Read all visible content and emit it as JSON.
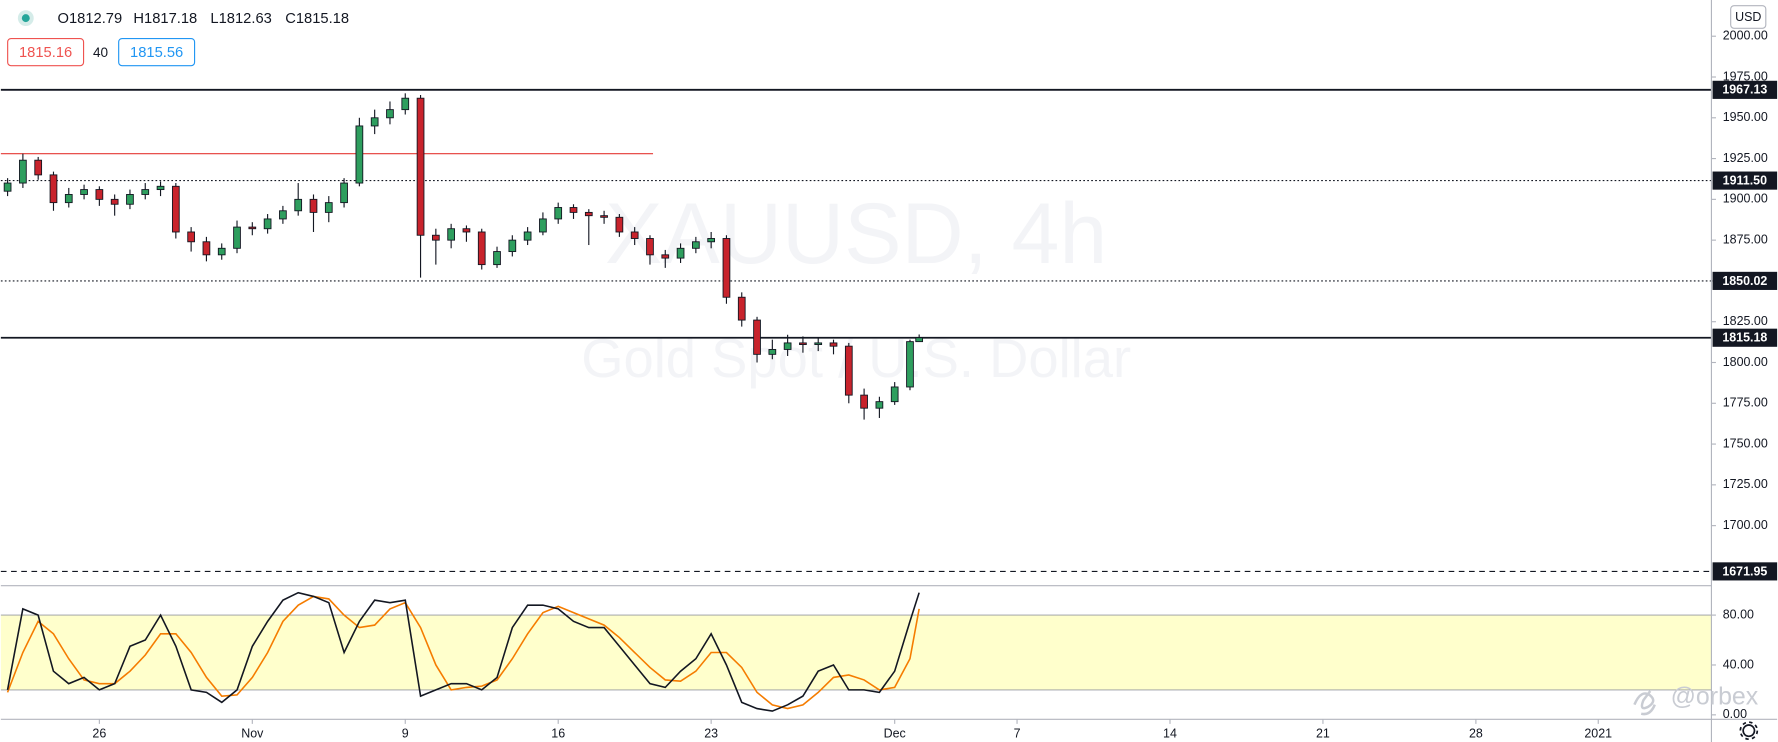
{
  "header": {
    "ohlc": [
      "O1812.79",
      "H1817.18",
      "L1812.63",
      "C1815.18"
    ],
    "bid": "1815.16",
    "spread": "40",
    "ask": "1815.56",
    "currency": "USD"
  },
  "watermark": {
    "symbol": "XAUUSD, 4h",
    "description": "Gold Spot / U.S. Dollar"
  },
  "credit": "@orbex",
  "chart_data": [
    {
      "type": "candlestick",
      "up_color": "#2e9e5e",
      "down_color": "#c8232c",
      "x": [
        -3,
        -2.5,
        -2,
        -1.5,
        -1,
        -0.5,
        0,
        0.5,
        1,
        1.5,
        2,
        2.5,
        3,
        3.5,
        4,
        4.5,
        5,
        5.5,
        6,
        6.5,
        7,
        7.5,
        8,
        8.5,
        9,
        9.5,
        10,
        10.5,
        11,
        11.5,
        12,
        12.5,
        13,
        13.5,
        14,
        14.5,
        15,
        15.5,
        16,
        16.5,
        17,
        17.5,
        18,
        18.5,
        19,
        19.5,
        20,
        20.5,
        21,
        21.5,
        22,
        22.5,
        23,
        23.5,
        24,
        24.5,
        25,
        25.5,
        26,
        26.5,
        26.8
      ],
      "open": [
        1905,
        1910,
        1924,
        1915,
        1898,
        1903,
        1906,
        1900,
        1897,
        1903,
        1906,
        1908,
        1880,
        1874,
        1866,
        1870,
        1883,
        1882,
        1888,
        1893,
        1900,
        1892,
        1898,
        1910,
        1945,
        1950,
        1955,
        1962,
        1878,
        1875,
        1882,
        1880,
        1860,
        1868,
        1875,
        1880,
        1888,
        1895,
        1892,
        1890,
        1889,
        1880,
        1876,
        1866,
        1864,
        1870,
        1874,
        1876,
        1840,
        1826,
        1805,
        1808,
        1812,
        1811,
        1812,
        1810,
        1780,
        1772,
        1776,
        1785,
        1812.79
      ],
      "high": [
        1913,
        1928,
        1926,
        1917,
        1907,
        1909,
        1908,
        1903,
        1906,
        1910,
        1911,
        1910,
        1883,
        1877,
        1873,
        1887,
        1886,
        1891,
        1896,
        1910,
        1903,
        1902,
        1913,
        1950,
        1955,
        1960,
        1965,
        1964,
        1882,
        1885,
        1884,
        1882,
        1871,
        1878,
        1883,
        1892,
        1898,
        1897,
        1894,
        1893,
        1891,
        1883,
        1878,
        1869,
        1873,
        1877,
        1880,
        1878,
        1843,
        1828,
        1814,
        1817,
        1816,
        1815,
        1814,
        1812,
        1784,
        1779,
        1788,
        1814,
        1817.18
      ],
      "low": [
        1902,
        1907,
        1912,
        1893,
        1895,
        1900,
        1896,
        1890,
        1894,
        1900,
        1902,
        1876,
        1868,
        1862,
        1863,
        1867,
        1878,
        1879,
        1885,
        1890,
        1880,
        1886,
        1895,
        1908,
        1940,
        1946,
        1952,
        1852,
        1860,
        1870,
        1874,
        1857,
        1858,
        1865,
        1872,
        1878,
        1885,
        1888,
        1872,
        1885,
        1877,
        1872,
        1860,
        1858,
        1861,
        1867,
        1870,
        1836,
        1822,
        1800,
        1802,
        1804,
        1806,
        1807,
        1805,
        1775,
        1765,
        1766,
        1774,
        1783,
        1812.63
      ],
      "close": [
        1910,
        1924,
        1915,
        1898,
        1903,
        1906,
        1900,
        1897,
        1903,
        1906,
        1908,
        1880,
        1874,
        1866,
        1870,
        1883,
        1882,
        1888,
        1893,
        1900,
        1892,
        1898,
        1910,
        1945,
        1950,
        1955,
        1962,
        1878,
        1875,
        1882,
        1880,
        1860,
        1868,
        1875,
        1880,
        1888,
        1895,
        1892,
        1890,
        1889,
        1880,
        1876,
        1866,
        1864,
        1870,
        1874,
        1876,
        1840,
        1826,
        1805,
        1808,
        1812,
        1811,
        1812,
        1810,
        1780,
        1772,
        1776,
        1785,
        1812.79,
        1815.18
      ],
      "xlim": [
        -3.22,
        52.7
      ],
      "xticks": [
        {
          "value": 0,
          "label": "26"
        },
        {
          "value": 5,
          "label": "Nov"
        },
        {
          "value": 10,
          "label": "9"
        },
        {
          "value": 15,
          "label": "16"
        },
        {
          "value": 20,
          "label": "23"
        },
        {
          "value": 26,
          "label": "Dec"
        },
        {
          "value": 30,
          "label": "7"
        },
        {
          "value": 35,
          "label": "14"
        },
        {
          "value": 40,
          "label": "21"
        },
        {
          "value": 45,
          "label": "28"
        },
        {
          "value": 49,
          "label": "2021"
        }
      ],
      "ylim": [
        1663.2,
        2022.2
      ],
      "yticks": [
        {
          "value": 1700,
          "label": "1700.00"
        },
        {
          "value": 1725,
          "label": "1725.00"
        },
        {
          "value": 1750,
          "label": "1750.00"
        },
        {
          "value": 1775,
          "label": "1775.00"
        },
        {
          "value": 1800,
          "label": "1800.00"
        },
        {
          "value": 1825,
          "label": "1825.00"
        },
        {
          "value": 1850,
          "label": "1850.00"
        },
        {
          "value": 1875,
          "label": "1875.00"
        },
        {
          "value": 1900,
          "label": "1900.00"
        },
        {
          "value": 1925,
          "label": "1925.00"
        },
        {
          "value": 1950,
          "label": "1950.00"
        },
        {
          "value": 1975,
          "label": "1975.00"
        },
        {
          "value": 2000,
          "label": "2000.00"
        }
      ],
      "grid": false,
      "levels": [
        {
          "value": 1967.13,
          "label": "1967.13",
          "style": "solid"
        },
        {
          "value": 1911.5,
          "label": "1911.50",
          "style": "dotted"
        },
        {
          "value": 1850.02,
          "label": "1850.02",
          "style": "dotted"
        },
        {
          "value": 1815.18,
          "label": "1815.18",
          "style": "solid"
        },
        {
          "value": 1671.95,
          "label": "1671.95",
          "style": "dashed"
        }
      ],
      "segments": [
        {
          "value": 1928,
          "x_range": [
            -3.22,
            18.1
          ],
          "color": "#e53935"
        }
      ]
    },
    {
      "type": "line",
      "ylim": [
        -3.6,
        103.6
      ],
      "yticks": [
        {
          "value": 0,
          "label": "0.00"
        },
        {
          "value": 40,
          "label": "40.00"
        },
        {
          "value": 80,
          "label": "80.00"
        }
      ],
      "band": [
        20,
        80
      ],
      "band_color": "#ffffcc",
      "series": [
        {
          "color": "#131722",
          "values": [
            20,
            85,
            80,
            35,
            25,
            30,
            20,
            25,
            55,
            60,
            80,
            55,
            20,
            18,
            10,
            20,
            55,
            75,
            92,
            98,
            95,
            90,
            50,
            75,
            92,
            90,
            92,
            15,
            20,
            25,
            25,
            20,
            30,
            70,
            88,
            88,
            85,
            75,
            70,
            70,
            55,
            40,
            25,
            22,
            35,
            45,
            65,
            40,
            10,
            5,
            3,
            8,
            15,
            35,
            40,
            20,
            20,
            18,
            35,
            75,
            98
          ]
        },
        {
          "color": "#f57c00",
          "values": [
            18,
            50,
            75,
            65,
            45,
            28,
            25,
            25,
            35,
            48,
            65,
            65,
            50,
            30,
            15,
            16,
            30,
            50,
            75,
            88,
            95,
            93,
            80,
            70,
            72,
            85,
            90,
            70,
            40,
            20,
            22,
            23,
            28,
            45,
            65,
            82,
            87,
            82,
            77,
            72,
            62,
            50,
            38,
            28,
            27,
            35,
            50,
            50,
            38,
            18,
            8,
            5,
            8,
            18,
            30,
            32,
            28,
            20,
            22,
            45,
            85
          ]
        }
      ]
    }
  ]
}
